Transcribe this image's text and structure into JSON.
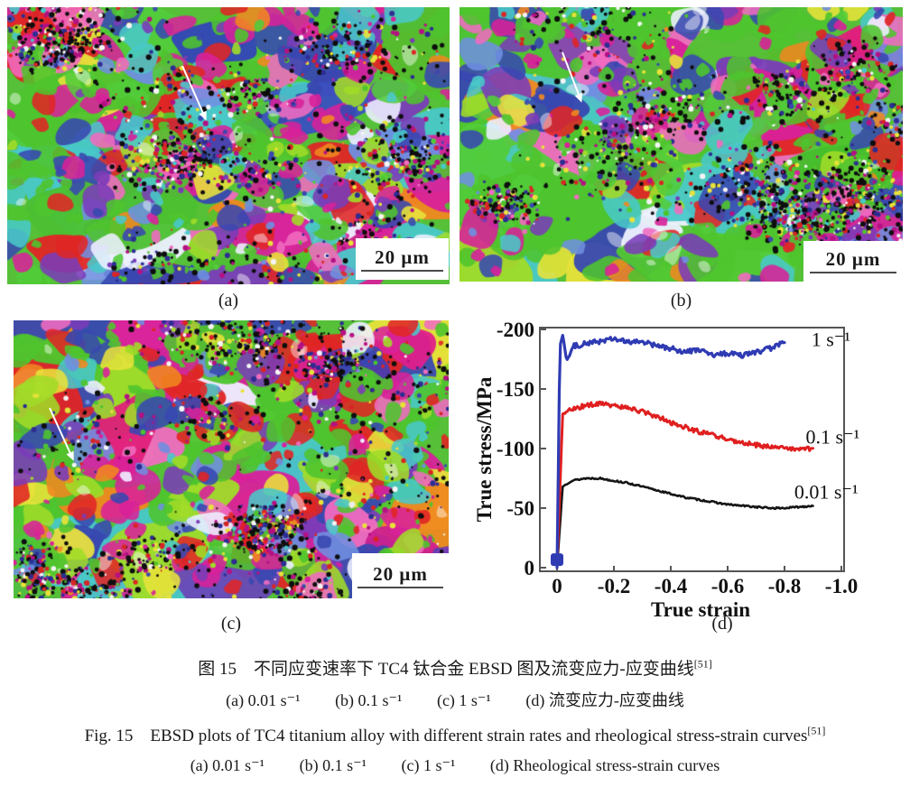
{
  "figure": {
    "caption_cn": {
      "line1": "图 15　不同应变速率下 TC4 钛合金 EBSD 图及流变应力-应变曲线",
      "line1_sup": "[51]",
      "items": [
        "(a) 0.01 s⁻¹",
        "(b) 0.1 s⁻¹",
        "(c) 1 s⁻¹",
        "(d) 流变应力-应变曲线"
      ]
    },
    "caption_en": {
      "line1": "Fig. 15　EBSD plots of TC4 titanium alloy with different strain rates and rheological stress-strain curves",
      "line1_sup": "[51]",
      "items": [
        "(a) 0.01 s⁻¹",
        "(b) 0.1 s⁻¹",
        "(c) 1 s⁻¹",
        "(d) Rheological stress-strain curves"
      ]
    }
  },
  "panels": [
    {
      "label": "(a)",
      "scale_text": "20 μm",
      "seed": 7,
      "arrow": [
        194,
        65,
        219,
        122
      ],
      "arrow_color": "#ffffff",
      "palette": [
        [
          "#4ec42e",
          26
        ],
        [
          "#52cc3a",
          8
        ],
        [
          "#d8219a",
          12
        ],
        [
          "#e02525",
          7
        ],
        [
          "#3848b0",
          10
        ],
        [
          "#7a3cb8",
          7
        ],
        [
          "#49c8c8",
          7
        ],
        [
          "#6f8fe0",
          4
        ],
        [
          "#f06bc0",
          5
        ],
        [
          "#a0dc28",
          4
        ],
        [
          "#e8e23a",
          3
        ],
        [
          "#f08820",
          2
        ],
        [
          "#eef0ff",
          2
        ]
      ],
      "features": [
        [
          90,
          90,
          60,
          32,
          0,
          "#4ec22e"
        ],
        [
          230,
          40,
          55,
          26,
          0,
          "#3344b8"
        ],
        [
          330,
          115,
          85,
          30,
          -8,
          "#3a50c0"
        ],
        [
          60,
          170,
          70,
          22,
          0,
          "#49c8c8"
        ],
        [
          280,
          185,
          75,
          30,
          5,
          "#52c832"
        ],
        [
          110,
          225,
          95,
          45,
          0,
          "#4cc032"
        ],
        [
          62,
          272,
          40,
          22,
          0,
          "#e02525"
        ],
        [
          300,
          255,
          55,
          28,
          0,
          "#d8219a"
        ],
        [
          430,
          105,
          45,
          30,
          0,
          "#7a3cb8"
        ],
        [
          160,
          295,
          70,
          14,
          0,
          "#3a44b0"
        ],
        [
          250,
          230,
          25,
          18,
          0,
          "#f08820"
        ]
      ]
    },
    {
      "label": "(b)",
      "scale_text": "20 μm",
      "seed": 23,
      "arrow": [
        114,
        50,
        134,
        102
      ],
      "arrow_color": "#ffffff",
      "palette": [
        [
          "#4ec42e",
          30
        ],
        [
          "#52cc3a",
          8
        ],
        [
          "#d8219a",
          12
        ],
        [
          "#e02525",
          7
        ],
        [
          "#3848b0",
          9
        ],
        [
          "#7a3cb8",
          7
        ],
        [
          "#49c8c8",
          6
        ],
        [
          "#6f8fe0",
          4
        ],
        [
          "#f06bc0",
          5
        ],
        [
          "#a0dc28",
          3
        ],
        [
          "#e8e23a",
          3
        ],
        [
          "#f08820",
          2
        ],
        [
          "#eef0ff",
          2
        ]
      ],
      "features": [
        [
          140,
          45,
          52,
          32,
          0,
          "#8a44b4"
        ],
        [
          95,
          115,
          45,
          22,
          0,
          "#3848b0"
        ],
        [
          75,
          225,
          95,
          50,
          0,
          "#4ec42e"
        ],
        [
          420,
          185,
          85,
          45,
          0,
          "#46be2c"
        ],
        [
          255,
          280,
          80,
          35,
          0,
          "#52c832"
        ],
        [
          440,
          55,
          50,
          35,
          0,
          "#e0207a"
        ],
        [
          420,
          115,
          55,
          16,
          -15,
          "#e02525"
        ],
        [
          470,
          250,
          45,
          30,
          0,
          "#d8219a"
        ],
        [
          300,
          230,
          50,
          20,
          0,
          "#49c8c8"
        ]
      ]
    },
    {
      "label": "(c)",
      "scale_text": "20 μm",
      "seed": 41,
      "arrow": [
        40,
        97,
        65,
        152
      ],
      "arrow_color": "#ffffff",
      "palette": [
        [
          "#4ec42e",
          22
        ],
        [
          "#a0dc28",
          8
        ],
        [
          "#d8219a",
          13
        ],
        [
          "#e02525",
          10
        ],
        [
          "#3848b0",
          9
        ],
        [
          "#7a3cb8",
          8
        ],
        [
          "#49c8c8",
          5
        ],
        [
          "#6f8fe0",
          4
        ],
        [
          "#f06bc0",
          6
        ],
        [
          "#e8e23a",
          4
        ],
        [
          "#f08820",
          3
        ],
        [
          "#eef0ff",
          2
        ]
      ],
      "features": [
        [
          75,
          35,
          55,
          24,
          0,
          "#4ec42e"
        ],
        [
          120,
          130,
          42,
          55,
          20,
          "#e0207a"
        ],
        [
          250,
          115,
          50,
          25,
          0,
          "#52c832"
        ],
        [
          380,
          60,
          55,
          28,
          0,
          "#4a3cb0"
        ],
        [
          440,
          30,
          35,
          25,
          0,
          "#e01f8a"
        ],
        [
          400,
          170,
          65,
          32,
          0,
          "#46be2c"
        ],
        [
          210,
          200,
          45,
          22,
          -20,
          "#a0dc28"
        ],
        [
          265,
          245,
          22,
          55,
          10,
          "#e02020"
        ],
        [
          235,
          290,
          70,
          30,
          0,
          "#6a48b8"
        ],
        [
          430,
          255,
          50,
          30,
          0,
          "#cc2090"
        ],
        [
          55,
          250,
          35,
          20,
          0,
          "#e8e040"
        ],
        [
          450,
          300,
          40,
          20,
          0,
          "#f08030"
        ]
      ]
    }
  ],
  "chart_data": {
    "type": "line",
    "panel_label": "(d)",
    "xlabel": "True strain",
    "ylabel": "True stress/MPa",
    "x_range": [
      0,
      -1.0
    ],
    "y_range": [
      0,
      -200
    ],
    "grid": false,
    "legend_position": "inline-right",
    "x_ticks": [
      {
        "label": "0",
        "pos": 0
      },
      {
        "label": "-0.2",
        "pos": 0.2
      },
      {
        "label": "-0.4",
        "pos": 0.4
      },
      {
        "label": "-0.6",
        "pos": 0.6
      },
      {
        "label": "-0.8",
        "pos": 0.8
      },
      {
        "label": "-1.0",
        "pos": 1.0
      }
    ],
    "y_ticks": [
      {
        "label": "0",
        "v": 0
      },
      {
        "label": "-50",
        "v": 50
      },
      {
        "label": "-100",
        "v": 100
      },
      {
        "label": "-150",
        "v": 150
      },
      {
        "label": "-200",
        "v": 200
      }
    ],
    "series": [
      {
        "name": "0.01 s⁻¹",
        "color": "#151515",
        "width": 2.6,
        "jitter": 0.7,
        "label_pos": [
          -0.79,
          58
        ],
        "points": [
          [
            0,
            0
          ],
          [
            -0.02,
            68
          ],
          [
            -0.05,
            73
          ],
          [
            -0.1,
            75
          ],
          [
            -0.15,
            75
          ],
          [
            -0.2,
            73
          ],
          [
            -0.25,
            71
          ],
          [
            -0.3,
            68
          ],
          [
            -0.35,
            65
          ],
          [
            -0.4,
            62
          ],
          [
            -0.45,
            59
          ],
          [
            -0.5,
            57
          ],
          [
            -0.55,
            55
          ],
          [
            -0.6,
            53
          ],
          [
            -0.65,
            52
          ],
          [
            -0.7,
            51
          ],
          [
            -0.75,
            50
          ],
          [
            -0.8,
            50
          ],
          [
            -0.85,
            51
          ],
          [
            -0.9,
            52
          ]
        ]
      },
      {
        "name": "0.1 s⁻¹",
        "color": "#e01f1f",
        "width": 3.0,
        "jitter": 1.9,
        "label_pos": [
          -0.83,
          104
        ],
        "points": [
          [
            0,
            0
          ],
          [
            -0.02,
            129
          ],
          [
            -0.05,
            133
          ],
          [
            -0.1,
            136
          ],
          [
            -0.15,
            138
          ],
          [
            -0.2,
            136
          ],
          [
            -0.25,
            134
          ],
          [
            -0.3,
            131
          ],
          [
            -0.35,
            127
          ],
          [
            -0.4,
            122
          ],
          [
            -0.45,
            118
          ],
          [
            -0.5,
            114
          ],
          [
            -0.55,
            111
          ],
          [
            -0.6,
            108
          ],
          [
            -0.65,
            105
          ],
          [
            -0.7,
            103
          ],
          [
            -0.75,
            101
          ],
          [
            -0.8,
            100
          ],
          [
            -0.85,
            99
          ],
          [
            -0.9,
            100
          ]
        ]
      },
      {
        "name": "1 s⁻¹",
        "color": "#2f3bb3",
        "width": 3.2,
        "jitter": 2.1,
        "label_pos": [
          -0.85,
          186
        ],
        "points": [
          [
            0,
            0
          ],
          [
            -0.01,
            186
          ],
          [
            -0.02,
            195
          ],
          [
            -0.035,
            174
          ],
          [
            -0.06,
            186
          ],
          [
            -0.1,
            188
          ],
          [
            -0.15,
            190
          ],
          [
            -0.2,
            192
          ],
          [
            -0.25,
            189
          ],
          [
            -0.3,
            190
          ],
          [
            -0.35,
            186
          ],
          [
            -0.4,
            184
          ],
          [
            -0.45,
            181
          ],
          [
            -0.5,
            183
          ],
          [
            -0.55,
            178
          ],
          [
            -0.6,
            180
          ],
          [
            -0.65,
            178
          ],
          [
            -0.7,
            181
          ],
          [
            -0.75,
            184
          ],
          [
            -0.8,
            189
          ]
        ]
      }
    ],
    "origin_marker_color": "#2f3bb3"
  }
}
